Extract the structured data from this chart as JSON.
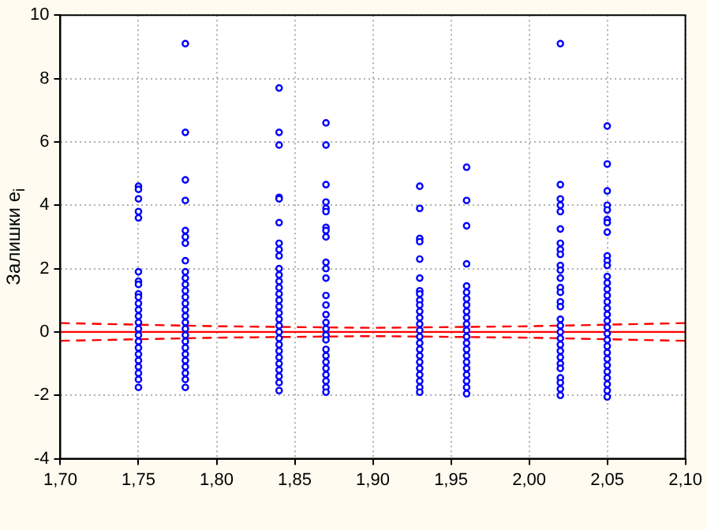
{
  "chart_data": {
    "type": "scatter",
    "ylabel": "Залишки e$_{i}$",
    "xlim": [
      1.7,
      2.1
    ],
    "ylim": [
      -4,
      10
    ],
    "xticks": [
      {
        "value": 1.7,
        "label": "1,70"
      },
      {
        "value": 1.75,
        "label": "1,75"
      },
      {
        "value": 1.8,
        "label": "1,80"
      },
      {
        "value": 1.85,
        "label": "1,85"
      },
      {
        "value": 1.9,
        "label": "1,90"
      },
      {
        "value": 1.95,
        "label": "1,95"
      },
      {
        "value": 2.0,
        "label": "2,00"
      },
      {
        "value": 2.05,
        "label": "2,05"
      },
      {
        "value": 2.1,
        "label": "2,10"
      }
    ],
    "yticks": [
      -4,
      -2,
      0,
      2,
      4,
      6,
      8,
      10
    ],
    "grid": true,
    "legend": false,
    "marker": "circle",
    "series": [
      {
        "type": "scatter",
        "color": "#0000ff",
        "x": [
          1.75,
          1.75,
          1.75,
          1.75,
          1.75,
          1.75,
          1.75,
          1.75,
          1.75,
          1.75,
          1.75,
          1.75,
          1.75,
          1.75,
          1.75,
          1.75,
          1.75,
          1.75,
          1.75,
          1.75,
          1.75,
          1.75,
          1.75,
          1.75
        ],
        "values": [
          4.6,
          4.5,
          4.2,
          3.8,
          3.6,
          1.9,
          1.6,
          1.5,
          1.2,
          1.1,
          0.9,
          0.7,
          0.5,
          0.3,
          0.1,
          -0.1,
          -0.3,
          -0.5,
          -0.7,
          -0.9,
          -1.1,
          -1.3,
          -1.5,
          -1.75
        ]
      },
      {
        "type": "scatter",
        "color": "#0000ff",
        "x": [
          1.78,
          1.78,
          1.78,
          1.78,
          1.78,
          1.78,
          1.78,
          1.78,
          1.78,
          1.78,
          1.78,
          1.78,
          1.78,
          1.78,
          1.78,
          1.78,
          1.78,
          1.78,
          1.78,
          1.78,
          1.78,
          1.78,
          1.78,
          1.78,
          1.78,
          1.78,
          1.78
        ],
        "values": [
          9.1,
          6.3,
          4.8,
          4.15,
          3.2,
          3.0,
          2.8,
          2.25,
          1.9,
          1.7,
          1.5,
          1.3,
          1.1,
          0.9,
          0.7,
          0.5,
          0.3,
          0.1,
          -0.1,
          -0.3,
          -0.5,
          -0.7,
          -0.9,
          -1.1,
          -1.3,
          -1.5,
          -1.75
        ]
      },
      {
        "type": "scatter",
        "color": "#0000ff",
        "x": [
          1.84,
          1.84,
          1.84,
          1.84,
          1.84,
          1.84,
          1.84,
          1.84,
          1.84,
          1.84,
          1.84,
          1.84,
          1.84,
          1.84,
          1.84,
          1.84,
          1.84,
          1.84,
          1.84,
          1.84,
          1.84,
          1.84,
          1.84,
          1.84,
          1.84,
          1.84,
          1.84,
          1.84,
          1.84
        ],
        "values": [
          7.7,
          6.3,
          5.9,
          4.25,
          4.2,
          3.45,
          2.8,
          2.6,
          2.4,
          2.0,
          1.8,
          1.6,
          1.4,
          1.2,
          1.0,
          0.8,
          0.6,
          0.4,
          0.2,
          0,
          -0.2,
          -0.4,
          -0.6,
          -0.8,
          -1.0,
          -1.2,
          -1.4,
          -1.6,
          -1.85
        ]
      },
      {
        "type": "scatter",
        "color": "#0000ff",
        "x": [
          1.87,
          1.87,
          1.87,
          1.87,
          1.87,
          1.87,
          1.87,
          1.87,
          1.87,
          1.87,
          1.87,
          1.87,
          1.87,
          1.87,
          1.87,
          1.87,
          1.87,
          1.87,
          1.87,
          1.87,
          1.87,
          1.87,
          1.87,
          1.87,
          1.87,
          1.87,
          1.87
        ],
        "values": [
          6.6,
          5.9,
          4.65,
          4.1,
          3.9,
          3.8,
          3.3,
          3.2,
          3.0,
          2.2,
          2.0,
          1.7,
          1.15,
          0.85,
          0.55,
          0.3,
          0.1,
          -0.1,
          -0.25,
          -0.55,
          -0.75,
          -0.95,
          -1.15,
          -1.35,
          -1.55,
          -1.75,
          -1.9
        ]
      },
      {
        "type": "scatter",
        "color": "#0000ff",
        "x": [
          1.93,
          1.93,
          1.93,
          1.93,
          1.93,
          1.93,
          1.93,
          1.93,
          1.93,
          1.93,
          1.93,
          1.93,
          1.93,
          1.93,
          1.93,
          1.93,
          1.93,
          1.93,
          1.93,
          1.93,
          1.93,
          1.93,
          1.93,
          1.93
        ],
        "values": [
          4.6,
          3.9,
          2.95,
          2.85,
          2.3,
          1.7,
          1.3,
          1.2,
          1.0,
          0.85,
          0.65,
          0.45,
          0.25,
          0.05,
          -0.15,
          -0.35,
          -0.55,
          -0.75,
          -0.95,
          -1.15,
          -1.35,
          -1.55,
          -1.75,
          -1.9
        ]
      },
      {
        "type": "scatter",
        "color": "#0000ff",
        "x": [
          1.96,
          1.96,
          1.96,
          1.96,
          1.96,
          1.96,
          1.96,
          1.96,
          1.96,
          1.96,
          1.96,
          1.96,
          1.96,
          1.96,
          1.96,
          1.96,
          1.96,
          1.96,
          1.96,
          1.96,
          1.96,
          1.96
        ],
        "values": [
          5.2,
          4.15,
          3.35,
          2.15,
          1.45,
          1.25,
          1.05,
          0.85,
          0.65,
          0.45,
          0.25,
          0.05,
          -0.15,
          -0.35,
          -0.55,
          -0.75,
          -0.95,
          -1.15,
          -1.35,
          -1.55,
          -1.75,
          -1.95
        ]
      },
      {
        "type": "scatter",
        "color": "#0000ff",
        "x": [
          2.02,
          2.02,
          2.02,
          2.02,
          2.02,
          2.02,
          2.02,
          2.02,
          2.02,
          2.02,
          2.02,
          2.02,
          2.02,
          2.02,
          2.02,
          2.02,
          2.02,
          2.02,
          2.02,
          2.02,
          2.02,
          2.02,
          2.02,
          2.02,
          2.02,
          2.02,
          2.02,
          2.02,
          2.02
        ],
        "values": [
          9.1,
          4.65,
          4.2,
          4.0,
          3.8,
          3.25,
          2.8,
          2.6,
          2.45,
          2.1,
          1.95,
          1.7,
          1.4,
          1.25,
          0.95,
          0.8,
          0.4,
          0.2,
          0,
          -0.2,
          -0.4,
          -0.6,
          -0.8,
          -1.0,
          -1.15,
          -1.45,
          -1.6,
          -1.8,
          -2.0
        ]
      },
      {
        "type": "scatter",
        "color": "#0000ff",
        "x": [
          2.05,
          2.05,
          2.05,
          2.05,
          2.05,
          2.05,
          2.05,
          2.05,
          2.05,
          2.05,
          2.05,
          2.05,
          2.05,
          2.05,
          2.05,
          2.05,
          2.05,
          2.05,
          2.05,
          2.05,
          2.05,
          2.05,
          2.05,
          2.05,
          2.05,
          2.05,
          2.05,
          2.05,
          2.05,
          2.05,
          2.05
        ],
        "values": [
          6.5,
          5.3,
          4.45,
          4.0,
          3.85,
          3.55,
          3.45,
          3.15,
          2.4,
          2.25,
          2.1,
          1.75,
          1.55,
          1.35,
          1.15,
          0.95,
          0.75,
          0.55,
          0.35,
          0.15,
          -0.05,
          -0.25,
          -0.45,
          -0.65,
          -0.85,
          -1.05,
          -1.25,
          -1.45,
          -1.65,
          -1.85,
          -2.05
        ]
      },
      {
        "type": "line",
        "color": "#ff0000",
        "marker": "none",
        "line_style": "solid",
        "x": [
          1.7,
          2.1
        ],
        "values": [
          0,
          0
        ]
      },
      {
        "type": "line",
        "color": "#ff0000",
        "marker": "none",
        "line_style": "dashed",
        "x": [
          1.7,
          1.8,
          1.9,
          2.0,
          2.1
        ],
        "values": [
          0.28,
          0.18,
          0.13,
          0.18,
          0.28
        ]
      },
      {
        "type": "line",
        "color": "#ff0000",
        "marker": "none",
        "line_style": "dashed",
        "x": [
          1.7,
          1.8,
          1.9,
          2.0,
          2.1
        ],
        "values": [
          -0.28,
          -0.18,
          -0.13,
          -0.18,
          -0.28
        ]
      }
    ]
  }
}
